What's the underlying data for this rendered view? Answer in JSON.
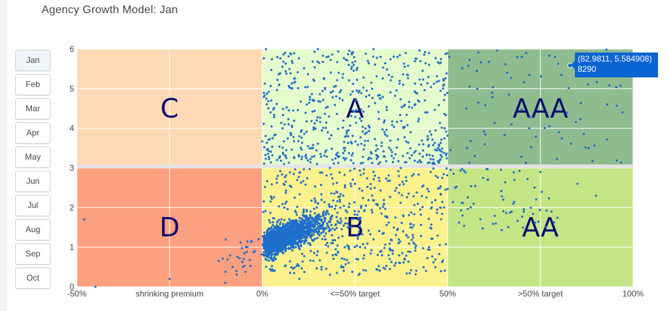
{
  "title": "Agency Growth Model: Jan",
  "months": [
    "Jan",
    "Feb",
    "Mar",
    "Apr",
    "May",
    "Jun",
    "Jul",
    "Aug",
    "Sep",
    "Oct"
  ],
  "selected_month": "Jan",
  "colors": {
    "C": "#fdd9b5",
    "A": "#e6fbcb",
    "AAA": "#8fbc8f",
    "D": "#fda07f",
    "B": "#fbf28d",
    "AA": "#c4e585",
    "points": "#1f6fcc",
    "tooltip": "#0a64d2"
  },
  "chart_data": {
    "type": "scatter",
    "xlim": [
      -50,
      100
    ],
    "ylim": [
      0,
      6
    ],
    "x_ticks": [
      {
        "value": -50,
        "label": "-50%"
      },
      {
        "value": -25,
        "label": "shrinking premium"
      },
      {
        "value": 0,
        "label": "0%"
      },
      {
        "value": 25,
        "label": "<=50% target"
      },
      {
        "value": 50,
        "label": "50%"
      },
      {
        "value": 75,
        "label": ">50% target"
      },
      {
        "value": 100,
        "label": "100%"
      }
    ],
    "y_ticks": [
      {
        "value": 0,
        "label": "0"
      },
      {
        "value": 1,
        "label": "1"
      },
      {
        "value": 2,
        "label": "2"
      },
      {
        "value": 3,
        "label": "3"
      },
      {
        "value": 4,
        "label": "4"
      },
      {
        "value": 5,
        "label": "5"
      },
      {
        "value": 6,
        "label": "6"
      }
    ],
    "zones": [
      {
        "label": "C",
        "x": [
          -50,
          0
        ],
        "y": [
          3,
          6
        ]
      },
      {
        "label": "A",
        "x": [
          0,
          50
        ],
        "y": [
          3,
          6
        ]
      },
      {
        "label": "AAA",
        "x": [
          50,
          100
        ],
        "y": [
          3,
          6
        ]
      },
      {
        "label": "D",
        "x": [
          -50,
          0
        ],
        "y": [
          0,
          3
        ]
      },
      {
        "label": "B",
        "x": [
          0,
          50
        ],
        "y": [
          0,
          3
        ]
      },
      {
        "label": "AA",
        "x": [
          50,
          100
        ],
        "y": [
          0,
          3
        ]
      }
    ],
    "sample_points": [
      [
        2,
        1.1
      ],
      [
        5,
        1.3
      ],
      [
        8,
        1.6
      ],
      [
        12,
        1.9
      ],
      [
        15,
        2.1
      ],
      [
        20,
        2.4
      ],
      [
        25,
        2.6
      ],
      [
        30,
        2.9
      ],
      [
        35,
        3.4
      ],
      [
        40,
        3.9
      ],
      [
        18,
        4.3
      ],
      [
        28,
        4.8
      ],
      [
        38,
        5.1
      ],
      [
        45,
        5.6
      ],
      [
        10,
        3.8
      ],
      [
        22,
        3.5
      ],
      [
        33,
        4.2
      ],
      [
        42,
        4.7
      ],
      [
        6,
        4.1
      ],
      [
        14,
        5.2
      ],
      [
        55,
        4.5
      ],
      [
        60,
        3.6
      ],
      [
        66,
        5.4
      ],
      [
        72,
        4.0
      ],
      [
        80,
        3.9
      ],
      [
        88,
        3.5
      ],
      [
        58,
        5.0
      ],
      [
        93,
        4.6
      ],
      [
        70,
        5.8
      ],
      [
        62,
        4.9
      ],
      [
        52,
        2.5
      ],
      [
        57,
        2.1
      ],
      [
        63,
        1.6
      ],
      [
        68,
        2.7
      ],
      [
        75,
        2.9
      ],
      [
        85,
        2.6
      ],
      [
        54,
        1.8
      ],
      [
        65,
        2.2
      ],
      [
        78,
        1.9
      ],
      [
        90,
        2.3
      ],
      [
        -2,
        0.9
      ],
      [
        -5,
        0.7
      ],
      [
        -8,
        0.5
      ],
      [
        -4,
        1.0
      ],
      [
        -7,
        0.4
      ],
      [
        -1,
        1.2
      ],
      [
        -25,
        0.2
      ],
      [
        -45,
        0.0
      ],
      [
        -48,
        1.7
      ],
      [
        -10,
        0.1
      ],
      [
        3,
        0.4
      ],
      [
        10,
        0.2
      ],
      [
        20,
        0.8
      ],
      [
        30,
        1.2
      ],
      [
        40,
        1.5
      ],
      [
        45,
        1.0
      ],
      [
        36,
        0.6
      ],
      [
        26,
        0.3
      ],
      [
        16,
        0.5
      ],
      [
        48,
        2.0
      ],
      [
        1,
        6.0
      ],
      [
        15,
        6.0
      ],
      [
        30,
        6.0
      ],
      [
        45,
        5.9
      ],
      [
        8,
        5.7
      ],
      [
        24,
        5.5
      ],
      [
        35,
        5.3
      ],
      [
        12,
        4.6
      ],
      [
        44,
        4.4
      ],
      [
        4,
        3.2
      ],
      [
        82.9811,
        5.584908
      ]
    ],
    "tooltip": {
      "line1": "(82.9811, 5.584908)",
      "line2": "8290"
    }
  }
}
